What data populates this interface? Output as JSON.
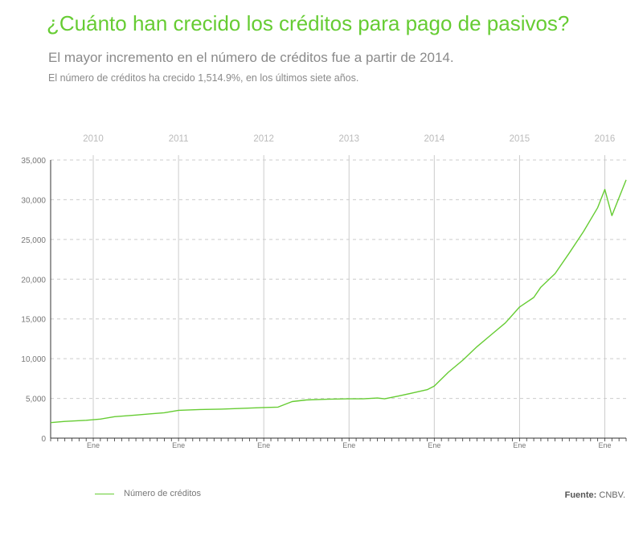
{
  "header": {
    "title": "¿Cuánto han crecido los créditos para pago de pasivos?",
    "subtitle": "El mayor incremento en el número de créditos fue a partir de 2014.",
    "note": "El número de créditos ha crecido 1,514.9%, en los últimos siete años."
  },
  "footer": {
    "source_label": "Fuente:",
    "source_value": "CNBV."
  },
  "colors": {
    "series": "#66cc33",
    "grid": "#cccccc",
    "axis": "#333333",
    "year_label": "#bbbbbb",
    "tick_label": "#777777"
  },
  "chart_data": {
    "type": "line",
    "x_unit": "month",
    "year_labels": [
      "2010",
      "2011",
      "2012",
      "2013",
      "2014",
      "2015",
      "2016"
    ],
    "month_tick_label": "Ene",
    "x_start": "2009-07",
    "x_end": "2016-04",
    "ylim": [
      0,
      35000
    ],
    "yticks": [
      0,
      5000,
      10000,
      15000,
      20000,
      25000,
      30000,
      35000
    ],
    "ytick_labels": [
      "0",
      "5,000",
      "10,000",
      "15,000",
      "20,000",
      "25,000",
      "30,000",
      "35,000"
    ],
    "grid": true,
    "legend_position": "bottom-left",
    "series": [
      {
        "name": "Número de créditos",
        "points": [
          [
            "2009-07",
            1950
          ],
          [
            "2009-09",
            2100
          ],
          [
            "2009-12",
            2250
          ],
          [
            "2010-02",
            2400
          ],
          [
            "2010-04",
            2700
          ],
          [
            "2010-07",
            2900
          ],
          [
            "2010-09",
            3050
          ],
          [
            "2010-11",
            3200
          ],
          [
            "2011-01",
            3500
          ],
          [
            "2011-04",
            3600
          ],
          [
            "2011-07",
            3650
          ],
          [
            "2011-10",
            3750
          ],
          [
            "2012-01",
            3850
          ],
          [
            "2012-03",
            3900
          ],
          [
            "2012-05",
            4600
          ],
          [
            "2012-07",
            4800
          ],
          [
            "2012-10",
            4900
          ],
          [
            "2013-01",
            4950
          ],
          [
            "2013-03",
            4950
          ],
          [
            "2013-05",
            5050
          ],
          [
            "2013-06",
            4950
          ],
          [
            "2013-08",
            5300
          ],
          [
            "2013-10",
            5700
          ],
          [
            "2013-12",
            6100
          ],
          [
            "2014-01",
            6550
          ],
          [
            "2014-03",
            8300
          ],
          [
            "2014-05",
            9800
          ],
          [
            "2014-07",
            11500
          ],
          [
            "2014-09",
            13000
          ],
          [
            "2014-11",
            14500
          ],
          [
            "2015-01",
            16500
          ],
          [
            "2015-03",
            17700
          ],
          [
            "2015-04",
            19000
          ],
          [
            "2015-06",
            20700
          ],
          [
            "2015-08",
            23300
          ],
          [
            "2015-10",
            26000
          ],
          [
            "2015-12",
            29000
          ],
          [
            "2016-01",
            31300
          ],
          [
            "2016-02",
            28000
          ],
          [
            "2016-04",
            32500
          ]
        ]
      }
    ]
  }
}
